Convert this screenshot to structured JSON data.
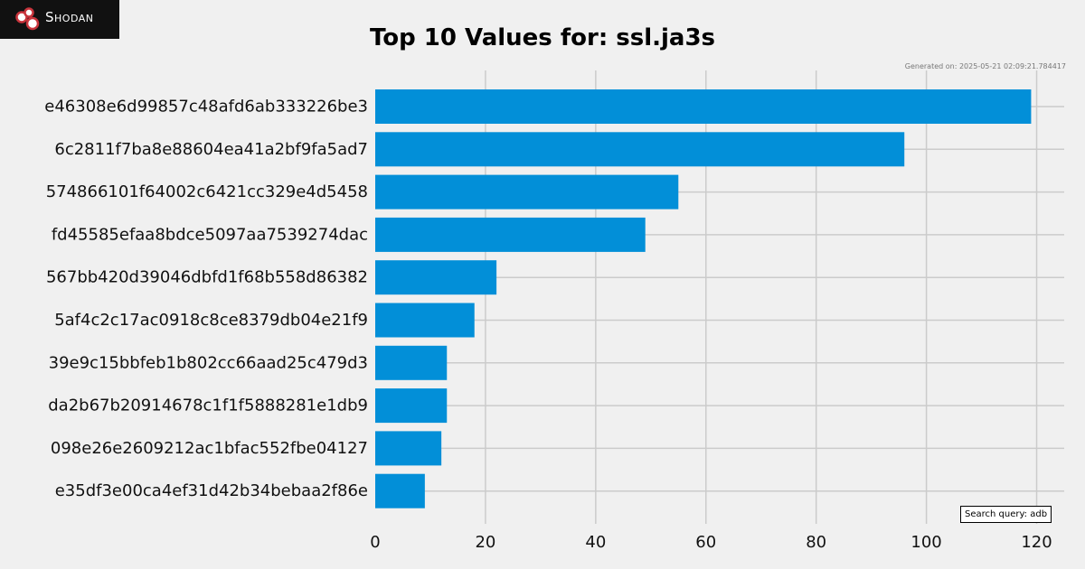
{
  "logo": {
    "text": "Shodan"
  },
  "header": {
    "generated": "Generated on: 2025-05-21 02:09:21.784417"
  },
  "search_query": "Search query: adb",
  "colors": {
    "bar": "#028fd8",
    "grid": "#cbcbcb",
    "background": "#f0f0f0"
  },
  "chart_data": {
    "type": "bar",
    "orientation": "horizontal",
    "title": "Top 10 Values for: ssl.ja3s",
    "categories": [
      "e46308e6d99857c48afd6ab333226be3",
      "6c2811f7ba8e88604ea41a2bf9fa5ad7",
      "574866101f64002c6421cc329e4d5458",
      "fd45585efaa8bdce5097aa7539274dac",
      "567bb420d39046dbfd1f68b558d86382",
      "5af4c2c17ac0918c8ce8379db04e21f9",
      "39e9c15bbfeb1b802cc66aad25c479d3",
      "da2b67b20914678c1f1f5888281e1db9",
      "098e26e2609212ac1bfac552fbe04127",
      "e35df3e00ca4ef31d42b34bebaa2f86e"
    ],
    "values": [
      119,
      96,
      55,
      49,
      22,
      18,
      13,
      13,
      12,
      9
    ],
    "xticks": [
      0,
      20,
      40,
      60,
      80,
      100,
      120
    ],
    "xlim": [
      0,
      125
    ],
    "xlabel": "",
    "ylabel": "",
    "grid": true
  }
}
